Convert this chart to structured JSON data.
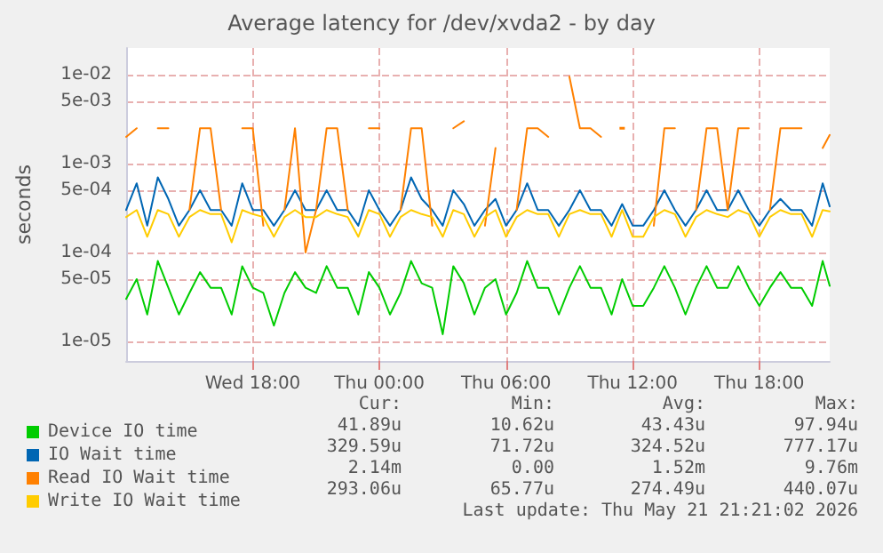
{
  "chart_data": {
    "type": "line",
    "title": "Average latency for /dev/xvda2 - by day",
    "ylabel": "seconds",
    "x": [
      "2026-05-20T12:00",
      "2026-05-20T12:30",
      "2026-05-20T13:00",
      "2026-05-20T13:30",
      "2026-05-20T14:00",
      "2026-05-20T14:30",
      "2026-05-20T15:00",
      "2026-05-20T15:30",
      "2026-05-20T16:00",
      "2026-05-20T16:30",
      "2026-05-20T17:00",
      "2026-05-20T17:30",
      "2026-05-20T18:00",
      "2026-05-20T18:30",
      "2026-05-20T19:00",
      "2026-05-20T19:30",
      "2026-05-20T20:00",
      "2026-05-20T20:30",
      "2026-05-20T21:00",
      "2026-05-20T21:30",
      "2026-05-20T22:00",
      "2026-05-20T22:30",
      "2026-05-20T23:00",
      "2026-05-20T23:30",
      "2026-05-21T00:00",
      "2026-05-21T00:30",
      "2026-05-21T01:00",
      "2026-05-21T01:30",
      "2026-05-21T02:00",
      "2026-05-21T02:30",
      "2026-05-21T03:00",
      "2026-05-21T03:30",
      "2026-05-21T04:00",
      "2026-05-21T04:30",
      "2026-05-21T05:00",
      "2026-05-21T05:30",
      "2026-05-21T06:00",
      "2026-05-21T06:30",
      "2026-05-21T07:00",
      "2026-05-21T07:30",
      "2026-05-21T08:00",
      "2026-05-21T08:30",
      "2026-05-21T09:00",
      "2026-05-21T09:30",
      "2026-05-21T10:00",
      "2026-05-21T10:30",
      "2026-05-21T11:00",
      "2026-05-21T11:30",
      "2026-05-21T12:00",
      "2026-05-21T12:30",
      "2026-05-21T13:00",
      "2026-05-21T13:30",
      "2026-05-21T14:00",
      "2026-05-21T14:30",
      "2026-05-21T15:00",
      "2026-05-21T15:30",
      "2026-05-21T16:00",
      "2026-05-21T16:30",
      "2026-05-21T17:00",
      "2026-05-21T17:30",
      "2026-05-21T18:00",
      "2026-05-21T18:30",
      "2026-05-21T19:00",
      "2026-05-21T19:30",
      "2026-05-21T20:00",
      "2026-05-21T20:30",
      "2026-05-21T21:00",
      "2026-05-21T21:20"
    ],
    "series": [
      {
        "name": "Device IO time",
        "color": "#00cc00",
        "values": [
          3e-05,
          5e-05,
          2e-05,
          8e-05,
          4e-05,
          2e-05,
          3.5e-05,
          6e-05,
          4e-05,
          4e-05,
          2e-05,
          7e-05,
          4e-05,
          3.5e-05,
          1.5e-05,
          3.5e-05,
          6e-05,
          4e-05,
          3.5e-05,
          7e-05,
          4e-05,
          4e-05,
          2e-05,
          6e-05,
          4e-05,
          2e-05,
          3.5e-05,
          8e-05,
          4.5e-05,
          4e-05,
          1.2e-05,
          7e-05,
          4.5e-05,
          2e-05,
          4e-05,
          5e-05,
          2e-05,
          3.5e-05,
          8e-05,
          4e-05,
          4e-05,
          2e-05,
          4e-05,
          7e-05,
          4e-05,
          4e-05,
          2e-05,
          5e-05,
          2.5e-05,
          2.5e-05,
          4e-05,
          7e-05,
          4e-05,
          2e-05,
          4e-05,
          7e-05,
          4e-05,
          4e-05,
          7e-05,
          4e-05,
          2.5e-05,
          4e-05,
          6e-05,
          4e-05,
          4e-05,
          2.5e-05,
          8e-05,
          4.2e-05
        ]
      },
      {
        "name": "IO Wait time",
        "color": "#0066b3",
        "values": [
          0.0003,
          0.0006,
          0.0002,
          0.0007,
          0.0004,
          0.0002,
          0.0003,
          0.0005,
          0.0003,
          0.0003,
          0.0002,
          0.0006,
          0.0003,
          0.0003,
          0.0002,
          0.0003,
          0.0005,
          0.0003,
          0.0003,
          0.0005,
          0.0003,
          0.0003,
          0.0002,
          0.0005,
          0.0003,
          0.0002,
          0.0003,
          0.0007,
          0.0004,
          0.0003,
          0.0002,
          0.0005,
          0.00035,
          0.0002,
          0.0003,
          0.0004,
          0.0002,
          0.0003,
          0.0006,
          0.0003,
          0.0003,
          0.0002,
          0.0003,
          0.0005,
          0.0003,
          0.0003,
          0.0002,
          0.00035,
          0.0002,
          0.0002,
          0.0003,
          0.0005,
          0.0003,
          0.0002,
          0.0003,
          0.0005,
          0.0003,
          0.0003,
          0.0005,
          0.0003,
          0.0002,
          0.0003,
          0.0004,
          0.0003,
          0.0003,
          0.0002,
          0.0006,
          0.00033
        ]
      },
      {
        "name": "Read IO Wait time",
        "color": "#ff8000",
        "values": [
          0.002,
          0.0025,
          null,
          0.0025,
          0.0025,
          null,
          0.0003,
          0.0025,
          0.0025,
          0.0003,
          null,
          0.0025,
          0.0025,
          0.0002,
          null,
          0.0003,
          0.0025,
          0.0001,
          0.0003,
          0.0025,
          0.0025,
          0.0003,
          null,
          0.0025,
          0.0025,
          null,
          0.0003,
          0.0025,
          0.0025,
          0.0002,
          null,
          0.0025,
          0.003,
          null,
          0.0002,
          0.0015,
          null,
          0.0003,
          0.0025,
          0.0025,
          0.002,
          null,
          0.0095,
          0.0025,
          0.0025,
          0.002,
          null,
          0.0025,
          null,
          null,
          0.0002,
          0.0025,
          0.0025,
          null,
          0.0003,
          0.0025,
          0.0025,
          0.0003,
          0.0025,
          0.0025,
          null,
          0.0003,
          0.0025,
          0.0025,
          0.0025,
          null,
          0.0015,
          0.0021
        ]
      },
      {
        "name": "Write IO Wait time",
        "color": "#ffcc00",
        "values": [
          0.00025,
          0.0003,
          0.00015,
          0.0003,
          0.00027,
          0.00015,
          0.00025,
          0.0003,
          0.00027,
          0.00027,
          0.00013,
          0.0003,
          0.00027,
          0.00025,
          0.00015,
          0.00025,
          0.0003,
          0.00025,
          0.00025,
          0.0003,
          0.00027,
          0.00025,
          0.00015,
          0.0003,
          0.00027,
          0.00015,
          0.00025,
          0.0003,
          0.00027,
          0.00025,
          0.00015,
          0.0003,
          0.00027,
          0.00015,
          0.00025,
          0.0003,
          0.00015,
          0.00025,
          0.0003,
          0.00027,
          0.00027,
          0.00015,
          0.00027,
          0.0003,
          0.00027,
          0.00027,
          0.00015,
          0.0003,
          0.00015,
          0.00015,
          0.00025,
          0.0003,
          0.00027,
          0.00015,
          0.00025,
          0.0003,
          0.00027,
          0.00025,
          0.0003,
          0.00027,
          0.00015,
          0.00025,
          0.0003,
          0.00027,
          0.00027,
          0.00015,
          0.0003,
          0.00029
        ]
      }
    ],
    "log": "y",
    "xlim": [
      "2026-05-20T12:00",
      "2026-05-21T21:20"
    ],
    "xticks": [
      {
        "value": "2026-05-20T18:00",
        "label": "Wed 18:00"
      },
      {
        "value": "2026-05-21T00:00",
        "label": "Thu 00:00"
      },
      {
        "value": "2026-05-21T06:00",
        "label": "Thu 06:00"
      },
      {
        "value": "2026-05-21T12:00",
        "label": "Thu 12:00"
      },
      {
        "value": "2026-05-21T18:00",
        "label": "Thu 18:00"
      }
    ],
    "ylim": [
      6e-06,
      0.02
    ],
    "yticks": [
      {
        "value": 0.01,
        "label": "1e-02"
      },
      {
        "value": 0.005,
        "label": "5e-03"
      },
      {
        "value": 0.001,
        "label": "1e-03"
      },
      {
        "value": 0.0005,
        "label": "5e-04"
      },
      {
        "value": 0.0001,
        "label": "1e-04"
      },
      {
        "value": 5e-05,
        "label": "5e-05"
      },
      {
        "value": 1e-05,
        "label": "1e-05"
      }
    ],
    "grid": true,
    "legend": "bottom left",
    "marker": "none",
    "line_style": "solid",
    "annotations": [
      "Cur:",
      "Min:",
      "Avg:",
      "Max:",
      "41.89u",
      "10.62u",
      "43.43u",
      "97.94u",
      "329.59u",
      "71.72u",
      "324.52u",
      "777.17u",
      "2.14m",
      "0.00",
      "1.52m",
      "9.76m",
      "293.06u",
      "65.77u",
      "274.49u",
      "440.07u",
      "Last update: Thu May 21 21:21:02 2026"
    ]
  }
}
